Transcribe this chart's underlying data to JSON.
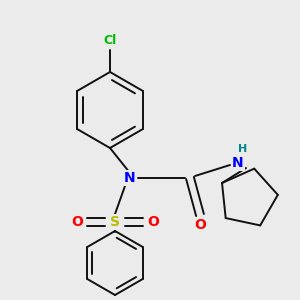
{
  "bg_color": "#ebebeb",
  "bond_color": "#111111",
  "bond_width": 1.4,
  "atom_colors": {
    "Cl": "#00bb00",
    "N": "#0000ff",
    "O": "#ff0000",
    "S": "#bbbb00",
    "H": "#008888",
    "C": "#111111"
  },
  "font_size_atom": 10,
  "font_size_cl": 9,
  "font_size_h": 8
}
